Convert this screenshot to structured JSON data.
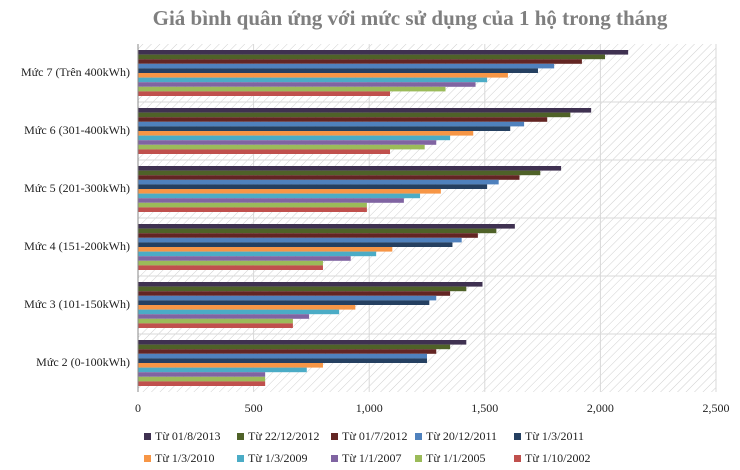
{
  "chart_data": {
    "type": "bar",
    "orientation": "horizontal",
    "title": "Giá bình quân ứng với mức sử dụng của 1 hộ trong tháng",
    "categories": [
      "Mức 7 (Trên 400kWh)",
      "Mức 6 (301-400kWh)",
      "Mức 5 (201-300kWh)",
      "Mức 4 (151-200kWh)",
      "Mức 3 (101-150kWh)",
      "Mức 2 (0-100kWh)"
    ],
    "series": [
      {
        "name": "Từ 01/8/2013",
        "color": "#3f3151",
        "values": [
          2120,
          1960,
          1830,
          1630,
          1490,
          1420
        ]
      },
      {
        "name": "Từ 22/12/2012",
        "color": "#4f6228",
        "values": [
          2020,
          1870,
          1740,
          1550,
          1420,
          1350
        ]
      },
      {
        "name": "Từ 01/7/2012",
        "color": "#632523",
        "values": [
          1920,
          1770,
          1650,
          1470,
          1350,
          1290
        ]
      },
      {
        "name": "Từ 20/12/2011",
        "color": "#4f81bd",
        "values": [
          1800,
          1670,
          1560,
          1400,
          1290,
          1250
        ]
      },
      {
        "name": "Từ 1/3/2011",
        "color": "#254061",
        "values": [
          1730,
          1610,
          1510,
          1360,
          1260,
          1250
        ]
      },
      {
        "name": "Từ 1/3/2010",
        "color": "#f79646",
        "values": [
          1600,
          1450,
          1310,
          1100,
          940,
          800
        ]
      },
      {
        "name": "Từ 1/3/2009",
        "color": "#4bacc6",
        "values": [
          1510,
          1350,
          1220,
          1030,
          870,
          730
        ]
      },
      {
        "name": "Từ 1/1/2007",
        "color": "#8064a2",
        "values": [
          1460,
          1290,
          1150,
          920,
          740,
          550
        ]
      },
      {
        "name": "Từ 1/1/2005",
        "color": "#9bbb59",
        "values": [
          1330,
          1240,
          990,
          800,
          670,
          550
        ]
      },
      {
        "name": "Từ 1/10/2002",
        "color": "#c0504d",
        "values": [
          1090,
          1090,
          990,
          800,
          670,
          550
        ]
      }
    ],
    "xlim": [
      0,
      2500
    ],
    "xticks": [
      0,
      500,
      {
        "value": 1000,
        "label": "1,000"
      },
      {
        "value": 1500,
        "label": "1,500"
      },
      {
        "value": 2000,
        "label": "2,000"
      },
      {
        "value": 2500,
        "label": "2,500"
      }
    ],
    "grid": true,
    "legend": "bottom"
  }
}
